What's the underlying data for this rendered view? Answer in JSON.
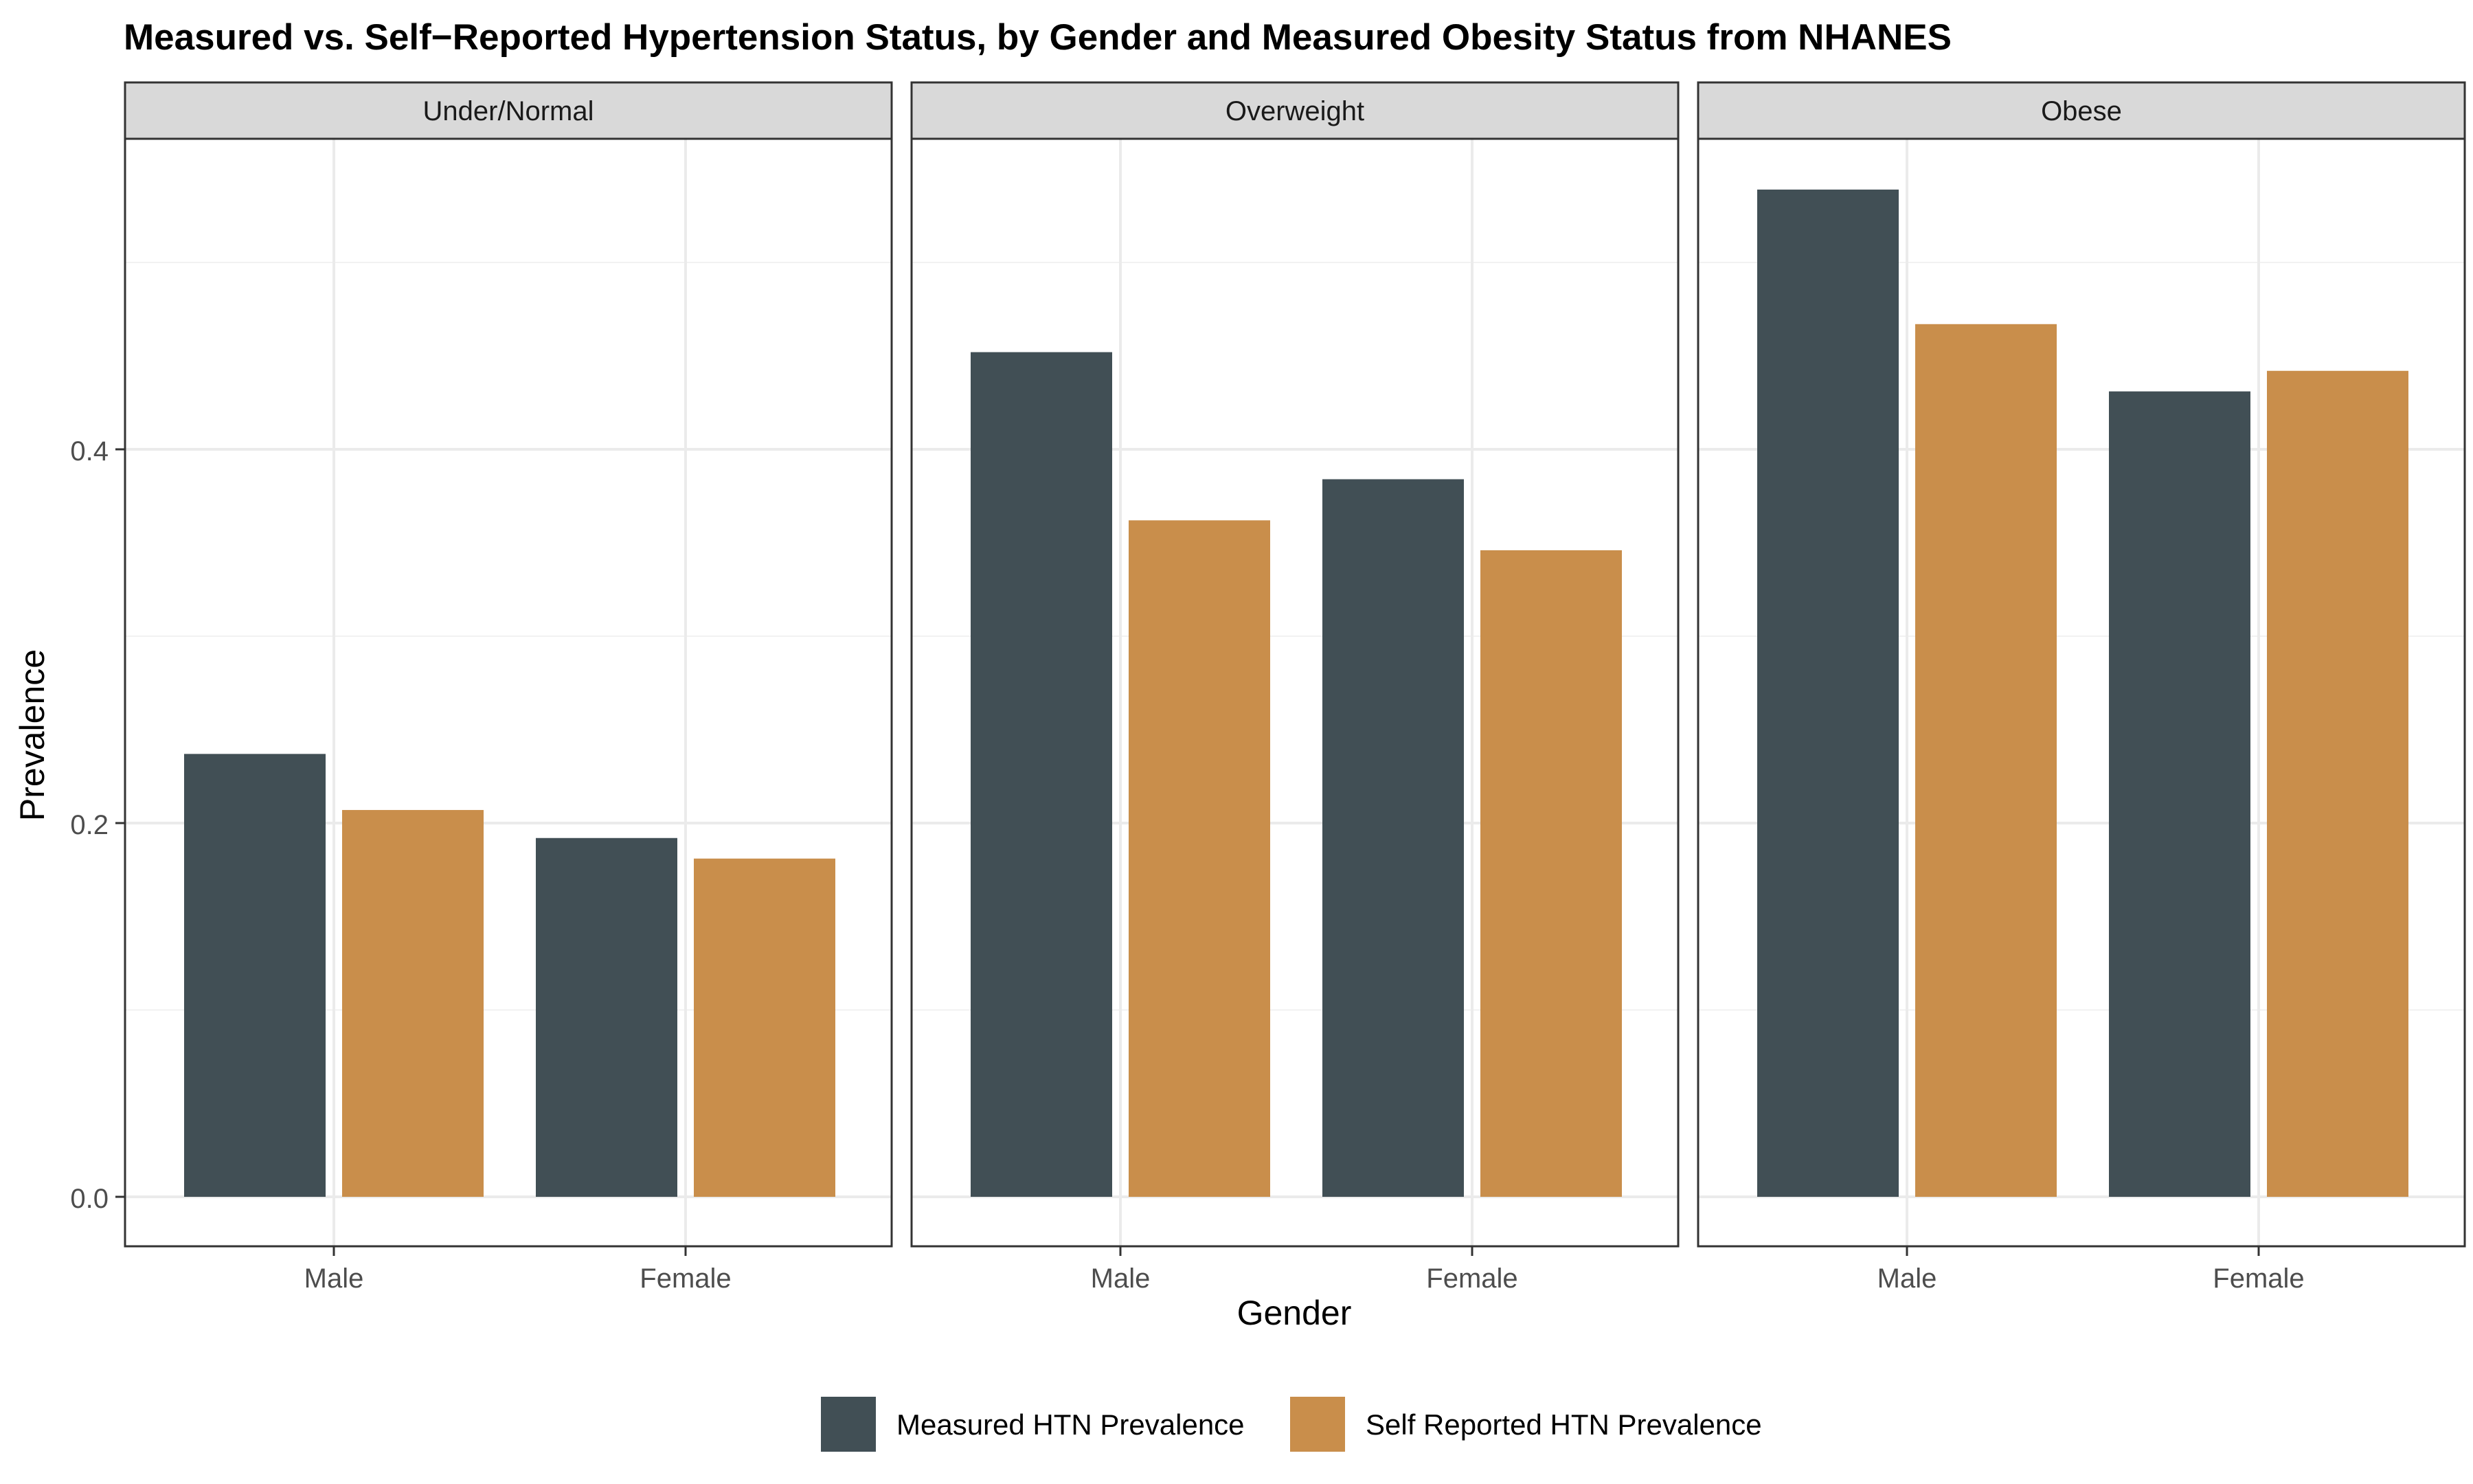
{
  "chart_data": {
    "type": "bar",
    "title": "Measured vs. Self−Reported Hypertension Status, by Gender and Measured Obesity Status from NHANES",
    "xlabel": "Gender",
    "ylabel": "Prevalence",
    "ylim": [
      0,
      0.566
    ],
    "yticks": [
      "0.0",
      "0.2",
      "0.4"
    ],
    "ytick_values": [
      0,
      0.2,
      0.4
    ],
    "grid": true,
    "legend_position": "bottom",
    "categories": [
      "Male",
      "Female"
    ],
    "facets": [
      {
        "label": "Under/Normal",
        "series": [
          {
            "name": "Measured HTN Prevalence",
            "values": [
              0.237,
              0.192
            ]
          },
          {
            "name": "Self Reported HTN Prevalence",
            "values": [
              0.207,
              0.181
            ]
          }
        ]
      },
      {
        "label": "Overweight",
        "series": [
          {
            "name": "Measured HTN Prevalence",
            "values": [
              0.452,
              0.384
            ]
          },
          {
            "name": "Self Reported HTN Prevalence",
            "values": [
              0.362,
              0.346
            ]
          }
        ]
      },
      {
        "label": "Obese",
        "series": [
          {
            "name": "Measured HTN Prevalence",
            "values": [
              0.539,
              0.431
            ]
          },
          {
            "name": "Self Reported HTN Prevalence",
            "values": [
              0.467,
              0.442
            ]
          }
        ]
      }
    ],
    "legend": [
      {
        "name": "Measured HTN Prevalence",
        "color": "#414f55"
      },
      {
        "name": "Self Reported HTN Prevalence",
        "color": "#c98e4b"
      }
    ]
  }
}
